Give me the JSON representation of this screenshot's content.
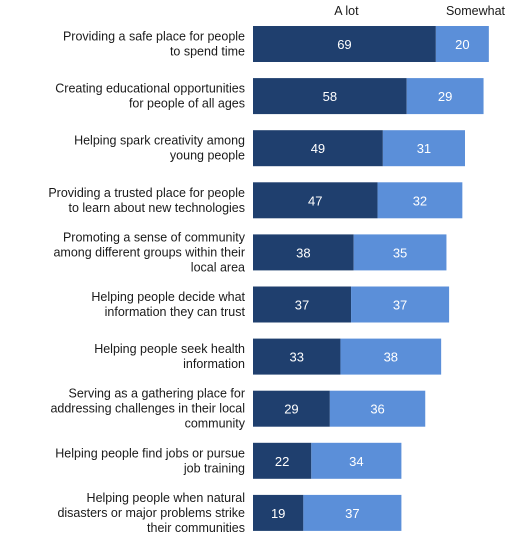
{
  "chart_data": {
    "type": "bar",
    "orientation": "horizontal",
    "stacked": true,
    "categories": [
      "Providing a safe place for people to spend time",
      "Creating educational opportunities for people of all ages",
      "Helping spark creativity among young people",
      "Providing a trusted place for people to learn about new technologies",
      "Promoting a sense of community among different groups within their local area",
      "Helping people decide what information they can trust",
      "Helping people seek health information",
      "Serving as a gathering place for addressing challenges in their local community",
      "Helping people find jobs or pursue job training",
      "Helping people when natural disasters or major problems strike their communities"
    ],
    "category_lines": [
      [
        "Providing a safe place for people",
        "to spend time"
      ],
      [
        "Creating educational opportunities",
        "for people of all ages"
      ],
      [
        "Helping spark creativity among",
        "young people"
      ],
      [
        "Providing a trusted place for people",
        "to learn about new technologies"
      ],
      [
        "Promoting a sense of community",
        "among different groups within their",
        "local area"
      ],
      [
        "Helping people  decide what",
        "information they can trust"
      ],
      [
        "Helping people  seek health",
        "information"
      ],
      [
        "Serving as a gathering place for",
        "addressing challenges in their local",
        "community"
      ],
      [
        "Helping people  find jobs or pursue",
        "job training"
      ],
      [
        "Helping people  when natural",
        "disasters or major problems strike",
        "their communities"
      ]
    ],
    "series": [
      {
        "name": "A lot",
        "values": [
          69,
          58,
          49,
          47,
          38,
          37,
          33,
          29,
          22,
          19
        ],
        "color": "#1f3f6e"
      },
      {
        "name": "Somewhat",
        "values": [
          20,
          29,
          31,
          32,
          35,
          37,
          38,
          36,
          34,
          37
        ],
        "color": "#5b8fd9"
      }
    ],
    "xlim": [
      0,
      100
    ],
    "title": "",
    "xlabel": "",
    "ylabel": "",
    "grid": false,
    "legend": "top"
  }
}
